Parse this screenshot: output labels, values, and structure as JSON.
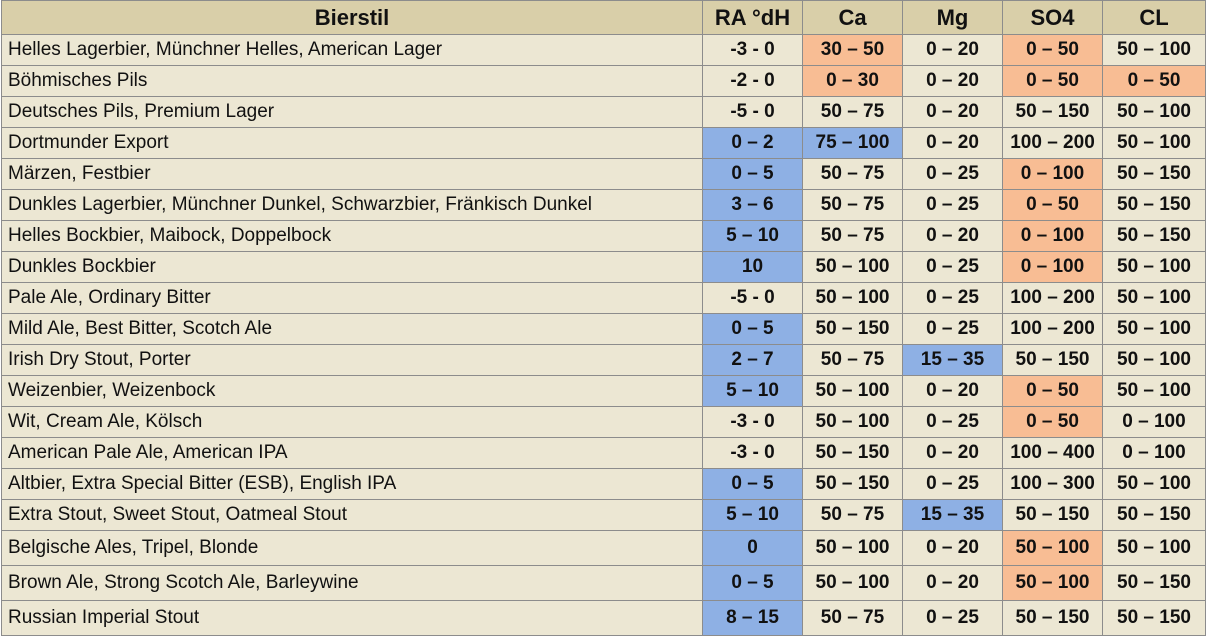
{
  "table": {
    "headers": [
      "Bierstil",
      "RA °dH",
      "Ca",
      "Mg",
      "SO4",
      "CL"
    ],
    "rows": [
      {
        "cells": [
          "Helles Lagerbier, Münchner Helles, American Lager",
          "-3 - 0",
          "30 – 50",
          "0 – 20",
          "0 – 50",
          "50 – 100"
        ],
        "highlight": [
          "",
          "",
          "orange",
          "",
          "orange",
          ""
        ]
      },
      {
        "cells": [
          "Böhmisches Pils",
          "-2 - 0",
          "0 – 30",
          "0 – 20",
          "0 – 50",
          "0 – 50"
        ],
        "highlight": [
          "",
          "",
          "orange",
          "",
          "orange",
          "orange"
        ]
      },
      {
        "cells": [
          "Deutsches Pils, Premium Lager",
          "-5 - 0",
          "50 – 75",
          "0 – 20",
          "50 – 150",
          "50 – 100"
        ],
        "highlight": [
          "",
          "",
          "",
          "",
          "",
          ""
        ]
      },
      {
        "cells": [
          "Dortmunder Export",
          "0 – 2",
          "75 – 100",
          "0 – 20",
          "100 – 200",
          "50 – 100"
        ],
        "highlight": [
          "",
          "blue",
          "blue",
          "",
          "",
          ""
        ]
      },
      {
        "cells": [
          "Märzen, Festbier",
          "0 – 5",
          "50 – 75",
          "0 – 25",
          "0 – 100",
          "50 – 150"
        ],
        "highlight": [
          "",
          "blue",
          "",
          "",
          "orange",
          ""
        ]
      },
      {
        "cells": [
          "Dunkles Lagerbier, Münchner Dunkel, Schwarzbier, Fränkisch Dunkel",
          "3 – 6",
          "50 – 75",
          "0 – 25",
          "0 – 50",
          "50 – 150"
        ],
        "highlight": [
          "",
          "blue",
          "",
          "",
          "orange",
          ""
        ]
      },
      {
        "cells": [
          "Helles Bockbier, Maibock, Doppelbock",
          "5 – 10",
          "50 – 75",
          "0 – 20",
          "0 – 100",
          "50 – 150"
        ],
        "highlight": [
          "",
          "blue",
          "",
          "",
          "orange",
          ""
        ]
      },
      {
        "cells": [
          "Dunkles Bockbier",
          "10",
          "50 – 100",
          "0 – 25",
          "0 – 100",
          "50 – 100"
        ],
        "highlight": [
          "",
          "blue",
          "",
          "",
          "orange",
          ""
        ]
      },
      {
        "cells": [
          "Pale Ale, Ordinary Bitter",
          "-5 - 0",
          "50 – 100",
          "0 – 25",
          "100 – 200",
          "50 – 100"
        ],
        "highlight": [
          "",
          "",
          "",
          "",
          "",
          ""
        ]
      },
      {
        "cells": [
          "Mild Ale, Best Bitter, Scotch Ale",
          "0 – 5",
          "50 – 150",
          "0 – 25",
          "100 – 200",
          "50 – 100"
        ],
        "highlight": [
          "",
          "blue",
          "",
          "",
          "",
          ""
        ]
      },
      {
        "cells": [
          "Irish Dry Stout, Porter",
          "2 – 7",
          "50 – 75",
          "15 – 35",
          "50 – 150",
          "50 – 100"
        ],
        "highlight": [
          "",
          "blue",
          "",
          "blue",
          "",
          ""
        ]
      },
      {
        "cells": [
          "Weizenbier, Weizenbock",
          "5 – 10",
          "50 – 100",
          "0 – 20",
          "0 – 50",
          "50 – 100"
        ],
        "highlight": [
          "",
          "blue",
          "",
          "",
          "orange",
          ""
        ]
      },
      {
        "cells": [
          "Wit, Cream Ale, Kölsch",
          "-3 - 0",
          "50 – 100",
          "0 – 25",
          "0 – 50",
          "0 – 100"
        ],
        "highlight": [
          "",
          "",
          "",
          "",
          "orange",
          ""
        ]
      },
      {
        "cells": [
          "American Pale Ale, American IPA",
          "-3 - 0",
          "50 – 150",
          "0 – 20",
          "100 – 400",
          "0 – 100"
        ],
        "highlight": [
          "",
          "",
          "",
          "",
          "",
          ""
        ]
      },
      {
        "cells": [
          "Altbier, Extra Special Bitter (ESB), English IPA",
          "0 – 5",
          "50 – 150",
          "0 – 25",
          "100 – 300",
          "50 – 100"
        ],
        "highlight": [
          "",
          "blue",
          "",
          "",
          "",
          ""
        ]
      },
      {
        "cells": [
          "Extra Stout, Sweet Stout, Oatmeal Stout",
          "5 – 10",
          "50 – 75",
          "15 – 35",
          "50 – 150",
          "50 – 150"
        ],
        "highlight": [
          "",
          "blue",
          "",
          "blue",
          "",
          ""
        ]
      },
      {
        "cells": [
          "Belgische Ales, Tripel, Blonde",
          "0",
          "50 – 100",
          "0 – 20",
          "50 – 100",
          "50 – 100"
        ],
        "highlight": [
          "",
          "blue",
          "",
          "",
          "orange",
          ""
        ],
        "tall": true
      },
      {
        "cells": [
          "Brown Ale, Strong Scotch Ale, Barleywine",
          "0 – 5",
          "50 – 100",
          "0 – 20",
          "50 – 100",
          "50 – 150"
        ],
        "highlight": [
          "",
          "blue",
          "",
          "",
          "orange",
          ""
        ],
        "tall": true
      },
      {
        "cells": [
          "Russian Imperial Stout",
          "8 – 15",
          "50 – 75",
          "0 – 25",
          "50 – 150",
          "50 – 150"
        ],
        "highlight": [
          "",
          "blue",
          "",
          "",
          "",
          ""
        ],
        "tall": true
      }
    ]
  },
  "colors": {
    "header_bg": "#d9cfa9",
    "cell_bg": "#ece7d3",
    "blue": "#8eb0e4",
    "orange": "#f8bd94"
  }
}
